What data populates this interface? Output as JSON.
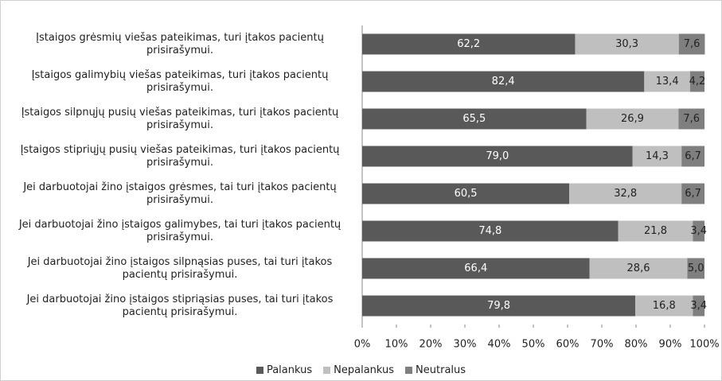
{
  "chart_data": {
    "type": "stacked_bar_horizontal",
    "categories": [
      "Įstaigos grėsmių viešas pateikimas, turi įtakos pacientų prisirašymui.",
      "Įstaigos galimybių viešas pateikimas, turi įtakos pacientų prisirašymui.",
      "Įstaigos silpnųjų pusių viešas pateikimas, turi įtakos pacientų prisirašymui.",
      "Įstaigos stipriųjų pusių viešas pateikimas, turi įtakos pacientų prisirašymui.",
      "Jei darbuotojai žino įstaigos grėsmes, tai turi įtakos pacientų prisirašymui.",
      "Jei darbuotojai žino įstaigos galimybes, tai turi įtakos pacientų prisirašymui.",
      "Jei darbuotojai žino įstaigos silpnąsias puses, tai turi įtakos pacientų prisirašymui.",
      "Jei darbuotojai žino įstaigos stipriąsias puses, tai turi įtakos pacientų prisirašymui."
    ],
    "series": [
      {
        "name": "Palankus",
        "color": "#595959",
        "label_color": "#ffffff",
        "values": [
          62.2,
          82.4,
          65.5,
          79.0,
          60.5,
          74.8,
          66.4,
          79.8
        ],
        "value_labels": [
          "62,2",
          "82,4",
          "65,5",
          "79,0",
          "60,5",
          "74,8",
          "66,4",
          "79,8"
        ]
      },
      {
        "name": "Nepalankus",
        "color": "#bfbfbf",
        "label_color": "#222222",
        "values": [
          30.3,
          13.4,
          26.9,
          14.3,
          32.8,
          21.8,
          28.6,
          16.8
        ],
        "value_labels": [
          "30,3",
          "13,4",
          "26,9",
          "14,3",
          "32,8",
          "21,8",
          "28,6",
          "16,8"
        ]
      },
      {
        "name": "Neutralus",
        "color": "#7f7f7f",
        "label_color": "#222222",
        "values": [
          7.6,
          4.2,
          7.6,
          6.7,
          6.7,
          3.4,
          5.0,
          3.4
        ],
        "value_labels": [
          "7,6",
          "4,2",
          "7,6",
          "6,7",
          "6,7",
          "3,4",
          "5,0",
          "3,4"
        ]
      }
    ],
    "xlim": [
      0,
      100
    ],
    "xticks": [
      {
        "value": 0,
        "label": "0%"
      },
      {
        "value": 10,
        "label": "10%"
      },
      {
        "value": 20,
        "label": "20%"
      },
      {
        "value": 30,
        "label": "30%"
      },
      {
        "value": 40,
        "label": "40%"
      },
      {
        "value": 50,
        "label": "50%"
      },
      {
        "value": 60,
        "label": "60%"
      },
      {
        "value": 70,
        "label": "70%"
      },
      {
        "value": 80,
        "label": "80%"
      },
      {
        "value": 90,
        "label": "90%"
      },
      {
        "value": 100,
        "label": "100%"
      }
    ],
    "legend": "bottom"
  }
}
